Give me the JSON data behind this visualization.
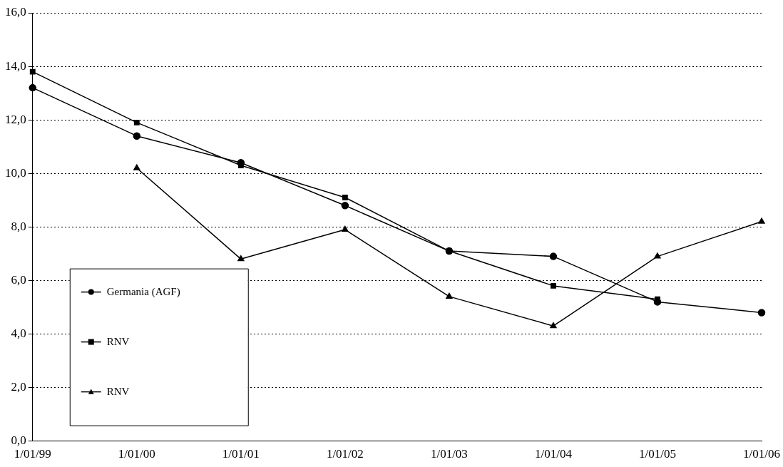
{
  "chart_data": {
    "type": "line",
    "categories": [
      "1/01/99",
      "1/01/00",
      "1/01/01",
      "1/01/02",
      "1/01/03",
      "1/01/04",
      "1/01/05",
      "1/01/06"
    ],
    "series": [
      {
        "name": "Germania (AGF)",
        "color": "#000000",
        "marker": "circle",
        "values": [
          13.2,
          11.4,
          10.4,
          8.8,
          7.1,
          6.9,
          5.2,
          4.8
        ]
      },
      {
        "name": "RNV",
        "color": "#000000",
        "marker": "square",
        "values": [
          13.8,
          11.9,
          10.3,
          9.1,
          7.1,
          5.8,
          5.3,
          null
        ]
      },
      {
        "name": "RNV",
        "color": "#000000",
        "marker": "triangle",
        "values": [
          null,
          10.2,
          6.8,
          7.9,
          5.4,
          4.3,
          6.9,
          8.2
        ]
      }
    ],
    "ylim": [
      0,
      16
    ],
    "yticks": [
      {
        "value": 0,
        "label": "0,0"
      },
      {
        "value": 2,
        "label": "2,0"
      },
      {
        "value": 4,
        "label": "4,0"
      },
      {
        "value": 6,
        "label": "6,0"
      },
      {
        "value": 8,
        "label": "8,0"
      },
      {
        "value": 10,
        "label": "10,0"
      },
      {
        "value": 12,
        "label": "12,0"
      },
      {
        "value": 14,
        "label": "14,0"
      },
      {
        "value": 16,
        "label": "16,0"
      }
    ],
    "grid": "y",
    "legend": "bottom left",
    "line_style": "solid"
  }
}
